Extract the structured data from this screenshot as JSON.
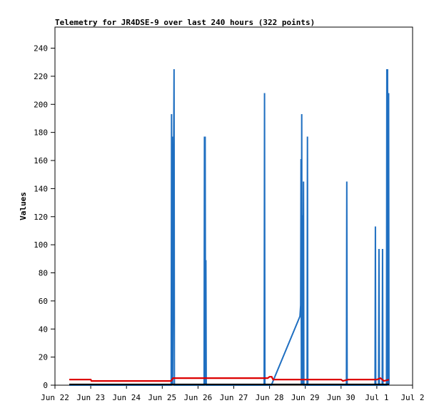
{
  "chart_data": {
    "type": "line",
    "title": "Telemetry for JR4DSE-9 over last 240 hours (322 points)",
    "xlabel": "",
    "ylabel": "Values",
    "x_tick_labels": [
      "Jun 22",
      "Jun 23",
      "Jun 24",
      "Jun 25",
      "Jun 26",
      "Jun 27",
      "Jun 28",
      "Jun 29",
      "Jun 30",
      "Jul 1",
      "Jul 2"
    ],
    "y_ticks": [
      0,
      20,
      40,
      60,
      80,
      100,
      120,
      140,
      160,
      180,
      200,
      220,
      240
    ],
    "xlim": [
      0,
      10
    ],
    "ylim": [
      0,
      255
    ],
    "grid": false,
    "legend": "none",
    "colors": {
      "series_blue": "#1f6fc1",
      "series_red": "#dd0000",
      "series_black": "#000000"
    },
    "series": [
      {
        "color": "#1f6fc1",
        "points": [
          [
            0.4,
            0
          ],
          [
            3.25,
            0
          ],
          [
            3.26,
            193
          ],
          [
            3.27,
            0
          ],
          [
            3.28,
            177
          ],
          [
            3.29,
            0
          ],
          [
            3.33,
            225
          ],
          [
            3.34,
            0
          ],
          [
            4.17,
            0
          ],
          [
            4.18,
            177
          ],
          [
            4.19,
            0
          ],
          [
            4.2,
            177
          ],
          [
            4.21,
            0
          ],
          [
            4.22,
            89
          ],
          [
            4.23,
            0
          ],
          [
            5.85,
            0
          ],
          [
            5.86,
            208
          ],
          [
            5.87,
            0
          ],
          [
            6.05,
            0
          ],
          [
            6.85,
            49
          ],
          [
            6.87,
            57
          ],
          [
            6.88,
            161
          ],
          [
            6.89,
            0
          ],
          [
            6.9,
            193
          ],
          [
            6.91,
            0
          ],
          [
            6.92,
            121
          ],
          [
            6.93,
            0
          ],
          [
            6.95,
            145
          ],
          [
            6.96,
            0
          ],
          [
            7.05,
            0
          ],
          [
            7.06,
            177
          ],
          [
            7.07,
            0
          ],
          [
            8.15,
            0
          ],
          [
            8.16,
            145
          ],
          [
            8.17,
            0
          ],
          [
            8.95,
            0
          ],
          [
            8.96,
            113
          ],
          [
            8.97,
            0
          ],
          [
            9.05,
            0
          ],
          [
            9.06,
            97
          ],
          [
            9.07,
            0
          ],
          [
            9.15,
            0
          ],
          [
            9.16,
            97
          ],
          [
            9.17,
            0
          ],
          [
            9.27,
            0
          ],
          [
            9.28,
            225
          ],
          [
            9.29,
            0
          ],
          [
            9.3,
            225
          ],
          [
            9.31,
            0
          ],
          [
            9.33,
            208
          ],
          [
            9.34,
            0
          ]
        ]
      },
      {
        "color": "#dd0000",
        "points": [
          [
            0.4,
            4
          ],
          [
            1.0,
            4
          ],
          [
            1.02,
            3
          ],
          [
            3.25,
            3
          ],
          [
            3.3,
            5
          ],
          [
            5.95,
            5
          ],
          [
            6.0,
            6
          ],
          [
            6.06,
            6
          ],
          [
            6.1,
            4
          ],
          [
            8.0,
            4
          ],
          [
            8.05,
            3
          ],
          [
            8.2,
            4
          ],
          [
            9.0,
            4
          ],
          [
            9.1,
            5
          ],
          [
            9.2,
            3
          ],
          [
            9.34,
            4
          ]
        ]
      },
      {
        "color": "#000000",
        "points": [
          [
            0.4,
            0.5
          ],
          [
            9.34,
            0.5
          ]
        ]
      }
    ]
  }
}
